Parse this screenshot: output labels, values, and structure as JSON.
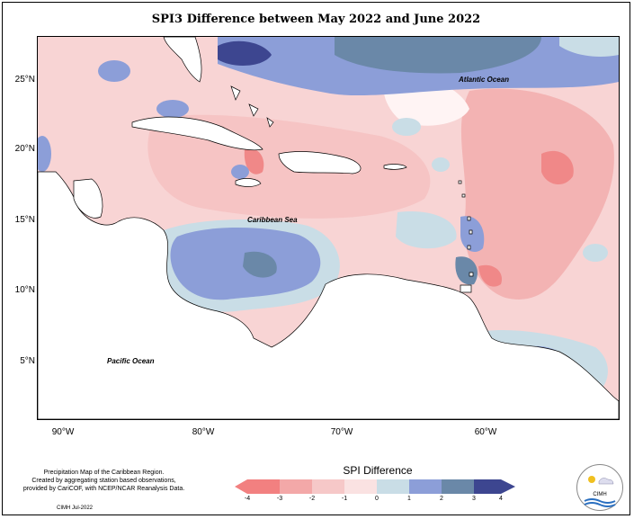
{
  "title": "SPI3 Difference between May 2022 and June 2022",
  "map": {
    "labels": {
      "atlantic": "Atlantic Ocean",
      "caribbean": "Caribbean Sea",
      "pacific": "Pacific Ocean"
    },
    "lat_ticks": [
      "25°N",
      "20°N",
      "15°N",
      "10°N",
      "5°N"
    ],
    "lon_ticks": [
      "90°W",
      "80°W",
      "70°W",
      "60°W"
    ]
  },
  "legend": {
    "title": "SPI Difference",
    "labels": [
      "-4",
      "-3",
      "-2",
      "-1",
      "0",
      "1",
      "2",
      "3",
      "4"
    ],
    "colors": [
      "#f28080",
      "#f3a8a8",
      "#f6c8c8",
      "#fae2e2",
      "#fff4f4",
      "#c9dde6",
      "#8c9ed8",
      "#6a88a8",
      "#3d4690"
    ]
  },
  "footer": {
    "line1": "Precipitation Map of the Caribbean Region.",
    "line2": "Created by aggregating station based observations,",
    "line3": "provided by CariCOF, with NCEP/NCAR Reanalysis Data.",
    "credit": "CIMH Jul-2022"
  },
  "logo": {
    "text": "CIMH"
  }
}
